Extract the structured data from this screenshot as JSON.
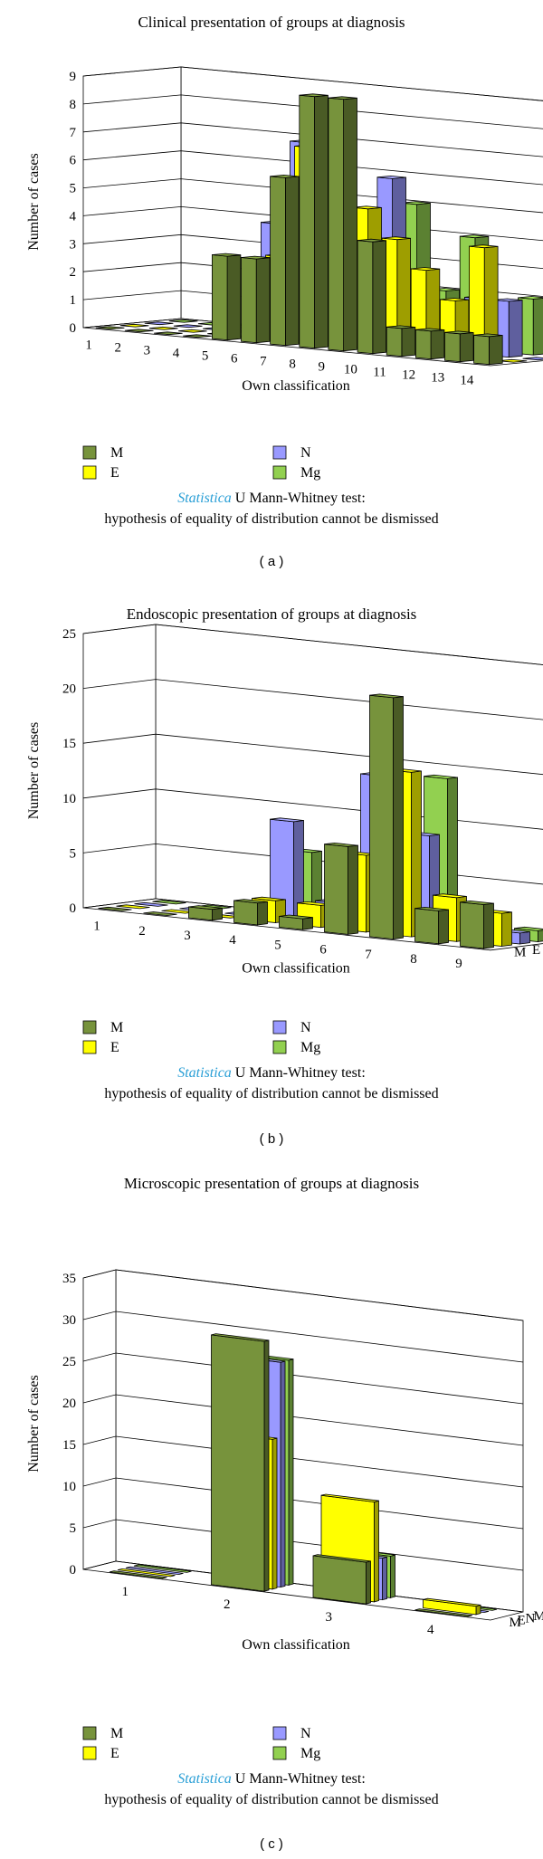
{
  "colors": {
    "M": "#77933c",
    "E": "#ffff00",
    "N": "#9999ff",
    "Mg": "#92d050"
  },
  "legend_entries": [
    "M",
    "N",
    "E",
    "Mg"
  ],
  "note_prefix": "Statistica",
  "note_line1_rest": " U Mann-Whitney test:",
  "note_line2": "hypothesis of equality of distribution cannot be dismissed",
  "chart_data": [
    {
      "type": "bar",
      "subtype": "3d-grouped",
      "panel": "( a )",
      "title": "Clinical presentation of groups at diagnosis",
      "xlabel": "Own classification",
      "ylabel": "Number of cases",
      "ylim": [
        0,
        9
      ],
      "yticks": [
        0,
        1,
        2,
        3,
        4,
        5,
        6,
        7,
        8,
        9
      ],
      "categories": [
        "1",
        "2",
        "3",
        "4",
        "5",
        "6",
        "7",
        "8",
        "9",
        "10",
        "11",
        "12",
        "13",
        "14"
      ],
      "series": [
        {
          "name": "M",
          "values": [
            0,
            0,
            0,
            0,
            3,
            3,
            6,
            9,
            9,
            4,
            1,
            1,
            1,
            1
          ]
        },
        {
          "name": "E",
          "values": [
            0,
            0,
            0,
            0,
            0,
            3,
            7,
            6,
            5,
            4,
            3,
            2,
            4,
            0
          ]
        },
        {
          "name": "N",
          "values": [
            0,
            0,
            0,
            0,
            4,
            7,
            0,
            0,
            6,
            0,
            1,
            2,
            2,
            0
          ]
        },
        {
          "name": "Mg",
          "values": [
            0,
            0,
            0,
            0,
            0,
            0,
            0,
            0,
            5,
            2,
            4,
            1,
            2,
            0
          ]
        }
      ]
    },
    {
      "type": "bar",
      "subtype": "3d-grouped",
      "panel": "( b )",
      "title": "Endoscopic presentation of groups at diagnosis",
      "xlabel": "Own classification",
      "ylabel": "Number of cases",
      "ylim": [
        0,
        25
      ],
      "yticks": [
        0,
        5,
        10,
        15,
        20,
        25
      ],
      "categories": [
        "1",
        "2",
        "3",
        "4",
        "5",
        "6",
        "7",
        "8",
        "9"
      ],
      "series": [
        {
          "name": "M",
          "values": [
            0,
            0,
            1,
            2,
            1,
            8,
            22,
            3,
            4
          ]
        },
        {
          "name": "E",
          "values": [
            0,
            0,
            0,
            2,
            2,
            7,
            15,
            4,
            3
          ]
        },
        {
          "name": "N",
          "values": [
            0,
            0,
            0,
            9,
            2,
            14,
            9,
            1,
            1
          ]
        },
        {
          "name": "Mg",
          "values": [
            0,
            0,
            0,
            6,
            0,
            0,
            14,
            1,
            1
          ]
        }
      ]
    },
    {
      "type": "bar",
      "subtype": "3d-grouped",
      "panel": "( c )",
      "title": "Microscopic presentation of groups at diagnosis",
      "xlabel": "Own classification",
      "ylabel": "Number of cases",
      "ylim": [
        0,
        35
      ],
      "yticks": [
        0,
        5,
        10,
        15,
        20,
        25,
        30,
        35
      ],
      "categories": [
        "1",
        "2",
        "3",
        "4"
      ],
      "series": [
        {
          "name": "M",
          "values": [
            0,
            30,
            5,
            0
          ]
        },
        {
          "name": "E",
          "values": [
            0,
            18,
            12,
            1
          ]
        },
        {
          "name": "N",
          "values": [
            0,
            27,
            5,
            0
          ]
        },
        {
          "name": "Mg",
          "values": [
            0,
            27,
            5,
            0
          ]
        }
      ]
    }
  ]
}
